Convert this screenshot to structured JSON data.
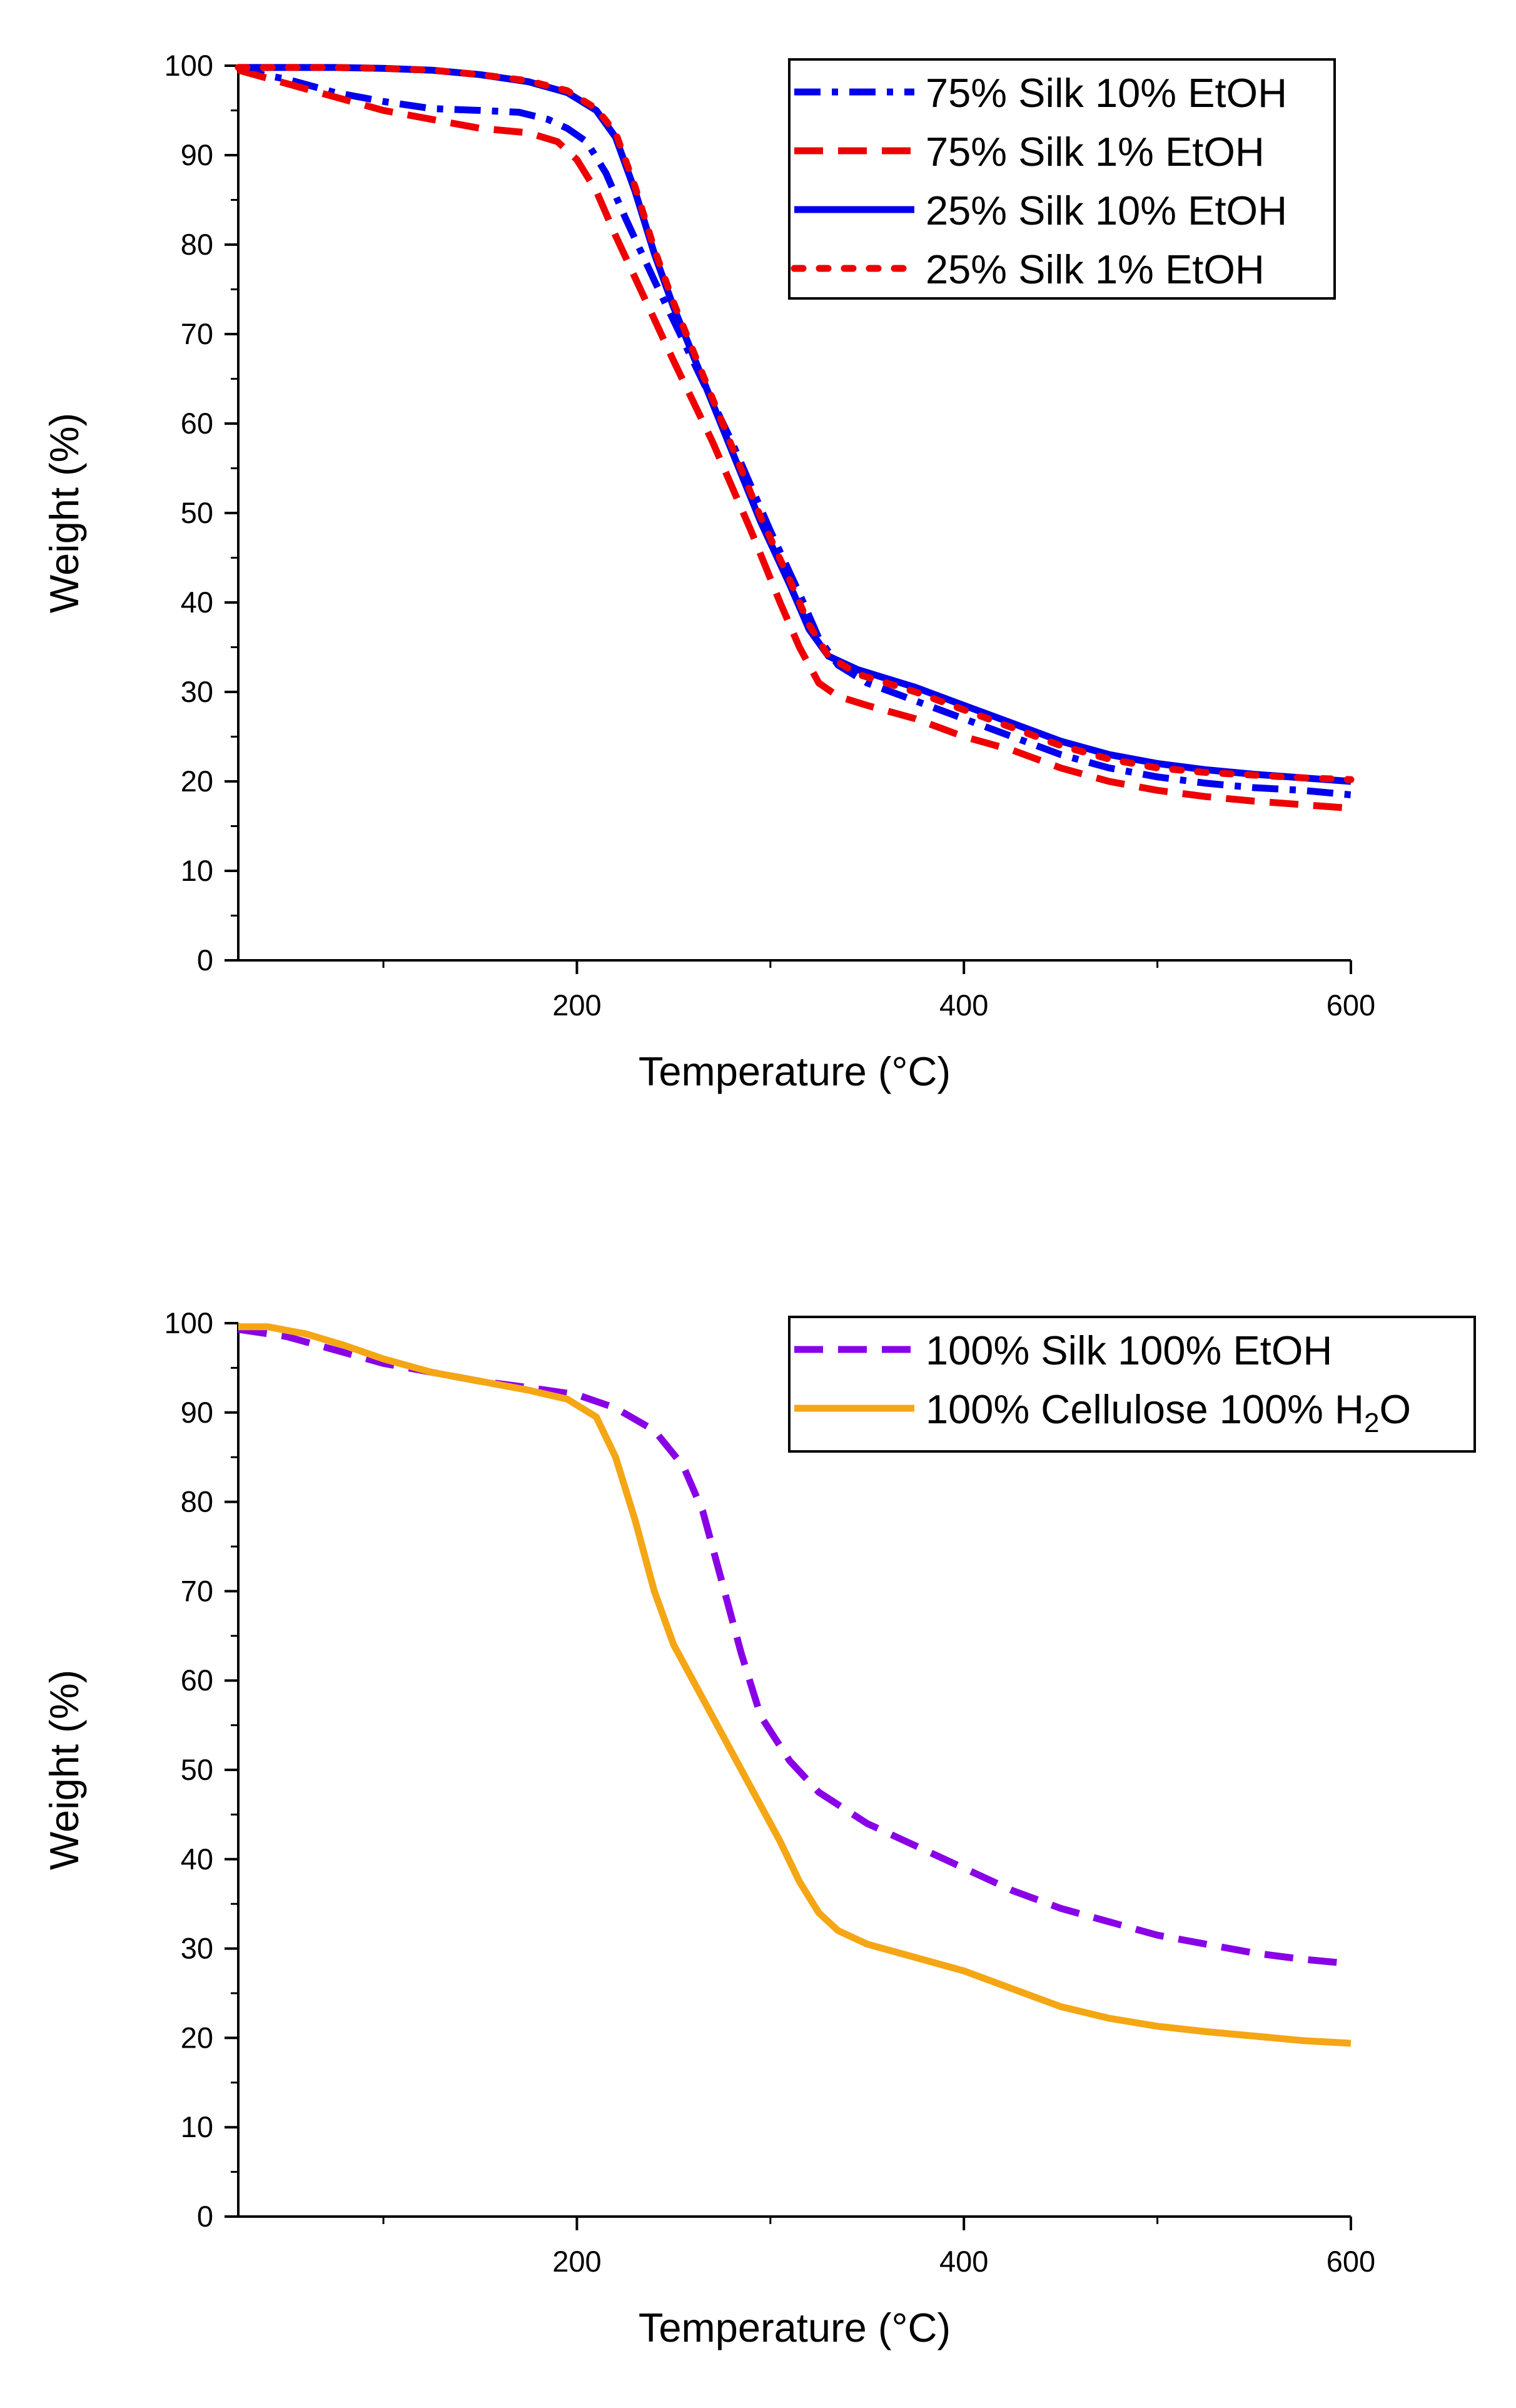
{
  "chart_data": [
    {
      "type": "line",
      "xlabel": "Temperature (°C)",
      "ylabel": "Weight (%)",
      "xlim": [
        25,
        600
      ],
      "ylim": [
        0,
        100
      ],
      "xticks": [
        200,
        400,
        600
      ],
      "yticks": [
        0,
        10,
        20,
        30,
        40,
        50,
        60,
        70,
        80,
        90,
        100
      ],
      "grid": false,
      "legend_position": "top-right",
      "series": [
        {
          "name": "75% Silk 10% EtOH",
          "color": "#0000ee",
          "style": "dash-dot",
          "points": [
            [
              25,
              99.5
            ],
            [
              50,
              98.5
            ],
            [
              75,
              97
            ],
            [
              100,
              96
            ],
            [
              125,
              95.2
            ],
            [
              150,
              95
            ],
            [
              170,
              94.8
            ],
            [
              185,
              94
            ],
            [
              195,
              93
            ],
            [
              205,
              91.5
            ],
            [
              215,
              88
            ],
            [
              225,
              83
            ],
            [
              240,
              76
            ],
            [
              260,
              67
            ],
            [
              280,
              58
            ],
            [
              300,
              48
            ],
            [
              315,
              41
            ],
            [
              325,
              36
            ],
            [
              335,
              33
            ],
            [
              350,
              31
            ],
            [
              375,
              29
            ],
            [
              400,
              27
            ],
            [
              425,
              25
            ],
            [
              450,
              23
            ],
            [
              475,
              21.5
            ],
            [
              500,
              20.5
            ],
            [
              525,
              19.8
            ],
            [
              550,
              19.3
            ],
            [
              575,
              19
            ],
            [
              600,
              18.5
            ]
          ]
        },
        {
          "name": "75% Silk 1% EtOH",
          "color": "#ee0000",
          "style": "dash",
          "points": [
            [
              25,
              99.5
            ],
            [
              50,
              98
            ],
            [
              75,
              96.5
            ],
            [
              100,
              95
            ],
            [
              125,
              94
            ],
            [
              150,
              93
            ],
            [
              175,
              92.5
            ],
            [
              190,
              91.5
            ],
            [
              200,
              89.5
            ],
            [
              210,
              86
            ],
            [
              220,
              81
            ],
            [
              235,
              74
            ],
            [
              250,
              67
            ],
            [
              270,
              58
            ],
            [
              290,
              48
            ],
            [
              305,
              40
            ],
            [
              315,
              35
            ],
            [
              325,
              31
            ],
            [
              335,
              29.5
            ],
            [
              350,
              28.5
            ],
            [
              375,
              27
            ],
            [
              400,
              25
            ],
            [
              425,
              23.5
            ],
            [
              450,
              21.5
            ],
            [
              475,
              20
            ],
            [
              500,
              19
            ],
            [
              525,
              18.3
            ],
            [
              550,
              17.8
            ],
            [
              575,
              17.4
            ],
            [
              600,
              17
            ]
          ]
        },
        {
          "name": "25% Silk 10% EtOH",
          "color": "#0000ee",
          "style": "solid",
          "points": [
            [
              25,
              99.8
            ],
            [
              50,
              99.8
            ],
            [
              75,
              99.8
            ],
            [
              100,
              99.7
            ],
            [
              125,
              99.5
            ],
            [
              150,
              99
            ],
            [
              175,
              98.2
            ],
            [
              195,
              97
            ],
            [
              210,
              95
            ],
            [
              220,
              92
            ],
            [
              230,
              86
            ],
            [
              240,
              79
            ],
            [
              250,
              73
            ],
            [
              265,
              65
            ],
            [
              280,
              57
            ],
            [
              295,
              49
            ],
            [
              310,
              42
            ],
            [
              320,
              37
            ],
            [
              330,
              34
            ],
            [
              345,
              32.5
            ],
            [
              375,
              30.5
            ],
            [
              400,
              28.5
            ],
            [
              425,
              26.5
            ],
            [
              450,
              24.5
            ],
            [
              475,
              23
            ],
            [
              500,
              22
            ],
            [
              525,
              21.3
            ],
            [
              550,
              20.8
            ],
            [
              575,
              20.4
            ],
            [
              600,
              20
            ]
          ]
        },
        {
          "name": "25% Silk 1% EtOH",
          "color": "#ee0000",
          "style": "dot",
          "points": [
            [
              25,
              99.8
            ],
            [
              50,
              99.8
            ],
            [
              75,
              99.8
            ],
            [
              100,
              99.7
            ],
            [
              125,
              99.5
            ],
            [
              150,
              99
            ],
            [
              175,
              98.3
            ],
            [
              195,
              97.2
            ],
            [
              210,
              95.2
            ],
            [
              220,
              92.5
            ],
            [
              230,
              86.5
            ],
            [
              240,
              79.5
            ],
            [
              250,
              73.5
            ],
            [
              265,
              65.5
            ],
            [
              280,
              57.5
            ],
            [
              295,
              49.5
            ],
            [
              310,
              42.5
            ],
            [
              320,
              37.5
            ],
            [
              330,
              34
            ],
            [
              345,
              32
            ],
            [
              375,
              30
            ],
            [
              400,
              28
            ],
            [
              425,
              26
            ],
            [
              450,
              24
            ],
            [
              475,
              22.5
            ],
            [
              500,
              21.5
            ],
            [
              525,
              21
            ],
            [
              550,
              20.7
            ],
            [
              575,
              20.4
            ],
            [
              600,
              20.2
            ]
          ]
        }
      ]
    },
    {
      "type": "line",
      "xlabel": "Temperature (°C)",
      "ylabel": "Weight (%)",
      "xlim": [
        25,
        600
      ],
      "ylim": [
        0,
        100
      ],
      "xticks": [
        200,
        400,
        600
      ],
      "yticks": [
        0,
        10,
        20,
        30,
        40,
        50,
        60,
        70,
        80,
        90,
        100
      ],
      "grid": false,
      "legend_position": "top-right",
      "series": [
        {
          "name": "100% Silk 100% EtOH",
          "legend_parts": [
            [
              "100% Silk 100% EtOH",
              ""
            ]
          ],
          "color": "#8a00e6",
          "style": "dash",
          "points": [
            [
              25,
              99.3
            ],
            [
              50,
              98.5
            ],
            [
              75,
              97
            ],
            [
              100,
              95.5
            ],
            [
              125,
              94.5
            ],
            [
              150,
              93.5
            ],
            [
              175,
              92.8
            ],
            [
              200,
              92
            ],
            [
              220,
              90.5
            ],
            [
              240,
              88
            ],
            [
              255,
              84
            ],
            [
              265,
              79
            ],
            [
              275,
              71
            ],
            [
              285,
              63
            ],
            [
              295,
              56
            ],
            [
              310,
              51
            ],
            [
              325,
              47.5
            ],
            [
              350,
              44
            ],
            [
              375,
              41.5
            ],
            [
              400,
              39
            ],
            [
              425,
              36.5
            ],
            [
              450,
              34.5
            ],
            [
              475,
              33
            ],
            [
              500,
              31.5
            ],
            [
              525,
              30.5
            ],
            [
              550,
              29.5
            ],
            [
              575,
              28.8
            ],
            [
              600,
              28.3
            ]
          ]
        },
        {
          "name": "100% Cellulose 100% H2O",
          "legend_parts": [
            [
              "100% Cellulose 100% H",
              ""
            ],
            [
              "2",
              "sub"
            ],
            [
              "O",
              ""
            ]
          ],
          "color": "#f5a614",
          "style": "solid",
          "points": [
            [
              25,
              99.6
            ],
            [
              40,
              99.6
            ],
            [
              60,
              98.8
            ],
            [
              80,
              97.5
            ],
            [
              100,
              96
            ],
            [
              125,
              94.5
            ],
            [
              150,
              93.5
            ],
            [
              175,
              92.5
            ],
            [
              195,
              91.5
            ],
            [
              210,
              89.5
            ],
            [
              220,
              85
            ],
            [
              230,
              78
            ],
            [
              240,
              70
            ],
            [
              250,
              64
            ],
            [
              260,
              60
            ],
            [
              275,
              54
            ],
            [
              290,
              48
            ],
            [
              305,
              42
            ],
            [
              315,
              37.5
            ],
            [
              325,
              34
            ],
            [
              335,
              32
            ],
            [
              350,
              30.5
            ],
            [
              375,
              29
            ],
            [
              400,
              27.5
            ],
            [
              425,
              25.5
            ],
            [
              450,
              23.5
            ],
            [
              475,
              22.2
            ],
            [
              500,
              21.3
            ],
            [
              525,
              20.7
            ],
            [
              550,
              20.2
            ],
            [
              575,
              19.7
            ],
            [
              600,
              19.4
            ]
          ]
        }
      ]
    }
  ]
}
